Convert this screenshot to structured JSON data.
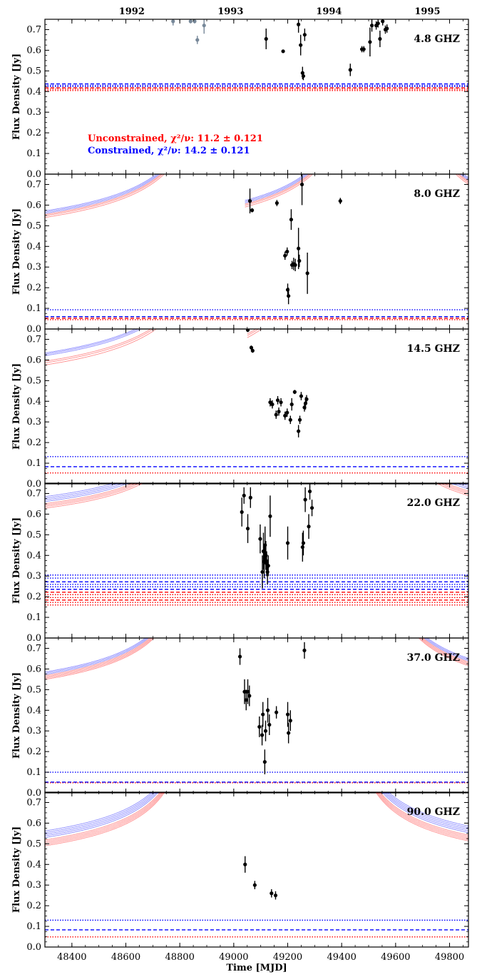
{
  "figure": {
    "top_axis_years": [
      "1992",
      "1993",
      "1994",
      "1995"
    ],
    "xlabel": "Time [MJD]",
    "ylabel": "Flux Density [Jy]",
    "legend": {
      "unconstrained": "Unconstrained, χ²/ν: 11.2 ± 0.121",
      "constrained": "Constrained, χ²/ν: 14.2 ± 0.121"
    },
    "colors": {
      "unconstrained": "#ff0000",
      "constrained": "#0000ff",
      "points": "#000000",
      "points_early": "#778899"
    }
  },
  "chart_data": [
    {
      "type": "scatter",
      "label": "4.8 GHZ",
      "xlim": [
        48300,
        49870
      ],
      "ylim": [
        0,
        0.75
      ],
      "yticks": [
        0.0,
        0.1,
        0.2,
        0.3,
        0.4,
        0.5,
        0.6,
        0.7
      ],
      "xticks": [
        48400,
        48600,
        48800,
        49000,
        49200,
        49400,
        49600,
        49800
      ],
      "top_year_ticks_mjd": [
        48622,
        48988,
        49353,
        49718
      ],
      "legend_placement": "lower-left",
      "observations": [
        {
          "x": 48775,
          "y": 0.74,
          "err": 0.02,
          "color": "gray"
        },
        {
          "x": 48840,
          "y": 0.74,
          "err": 0.01,
          "color": "gray"
        },
        {
          "x": 48855,
          "y": 0.74,
          "err": 0.01,
          "color": "gray"
        },
        {
          "x": 48865,
          "y": 0.65,
          "err": 0.02,
          "color": "gray"
        },
        {
          "x": 48890,
          "y": 0.72,
          "err": 0.04,
          "color": "gray"
        },
        {
          "x": 49120,
          "y": 0.655,
          "err": 0.05
        },
        {
          "x": 49183,
          "y": 0.595,
          "err": 0.005
        },
        {
          "x": 49240,
          "y": 0.725,
          "err": 0.04
        },
        {
          "x": 49248,
          "y": 0.625,
          "err": 0.05
        },
        {
          "x": 49255,
          "y": 0.49,
          "err": 0.03
        },
        {
          "x": 49258,
          "y": 0.475,
          "err": 0.02
        },
        {
          "x": 49263,
          "y": 0.675,
          "err": 0.03
        },
        {
          "x": 49432,
          "y": 0.505,
          "err": 0.03
        },
        {
          "x": 49475,
          "y": 0.605,
          "err": 0.015
        },
        {
          "x": 49482,
          "y": 0.605,
          "err": 0.015
        },
        {
          "x": 49505,
          "y": 0.64,
          "err": 0.07
        },
        {
          "x": 49512,
          "y": 0.72,
          "err": 0.03
        },
        {
          "x": 49528,
          "y": 0.72,
          "err": 0.02
        },
        {
          "x": 49535,
          "y": 0.73,
          "err": 0.02
        },
        {
          "x": 49542,
          "y": 0.655,
          "err": 0.04
        },
        {
          "x": 49552,
          "y": 0.74,
          "err": 0.02
        },
        {
          "x": 49562,
          "y": 0.7,
          "err": 0.02
        },
        {
          "x": 49568,
          "y": 0.705,
          "err": 0.02
        }
      ],
      "model": {
        "events": [
          [
            49090,
            49400
          ]
        ],
        "base": 0.5,
        "floor": 0.525,
        "amp": 1.1,
        "gamma": 0.55,
        "width": 55,
        "recover": 1000,
        "offsets_unconstrained": [
          -0.005,
          0.0,
          0.004
        ],
        "offsets_constrained": [
          0.0,
          0.006,
          0.01
        ]
      },
      "baselines": {
        "unconstrained": [
          {
            "y": 0.405,
            "style": "dotted"
          },
          {
            "y": 0.412,
            "style": "dotted"
          },
          {
            "y": 0.418,
            "style": "dashed"
          }
        ],
        "constrained": [
          {
            "y": 0.424,
            "style": "dotted"
          },
          {
            "y": 0.43,
            "style": "dotted"
          },
          {
            "y": 0.437,
            "style": "dashed"
          }
        ]
      }
    },
    {
      "type": "scatter",
      "label": "8.0 GHZ",
      "xlim": [
        48300,
        49870
      ],
      "ylim": [
        0,
        0.75
      ],
      "yticks": [
        0.0,
        0.1,
        0.2,
        0.3,
        0.4,
        0.5,
        0.6,
        0.7
      ],
      "xticks": [
        48400,
        48600,
        48800,
        49000,
        49200,
        49400,
        49600,
        49800
      ],
      "observations": [
        {
          "x": 49060,
          "y": 0.62,
          "err": 0.06
        },
        {
          "x": 49068,
          "y": 0.575,
          "err": 0.01
        },
        {
          "x": 49160,
          "y": 0.61,
          "err": 0.015
        },
        {
          "x": 49190,
          "y": 0.355,
          "err": 0.02
        },
        {
          "x": 49198,
          "y": 0.375,
          "err": 0.02
        },
        {
          "x": 49200,
          "y": 0.19,
          "err": 0.03
        },
        {
          "x": 49203,
          "y": 0.16,
          "err": 0.04
        },
        {
          "x": 49213,
          "y": 0.53,
          "err": 0.05
        },
        {
          "x": 49216,
          "y": 0.31,
          "err": 0.02
        },
        {
          "x": 49222,
          "y": 0.315,
          "err": 0.03
        },
        {
          "x": 49228,
          "y": 0.31,
          "err": 0.03
        },
        {
          "x": 49240,
          "y": 0.39,
          "err": 0.1
        },
        {
          "x": 49243,
          "y": 0.33,
          "err": 0.03
        },
        {
          "x": 49253,
          "y": 0.7,
          "err": 0.1
        },
        {
          "x": 49273,
          "y": 0.27,
          "err": 0.1
        },
        {
          "x": 49395,
          "y": 0.62,
          "err": 0.015
        }
      ],
      "model": {
        "events": [
          [
            48850,
            49040
          ],
          [
            49400,
            49715
          ]
        ],
        "base": 0.27,
        "floor": 0.0,
        "amp": 0.55,
        "gamma": 0.45,
        "width": 70,
        "recover": 0,
        "offsets_unconstrained": [
          -0.008,
          0.0,
          0.006
        ],
        "offsets_constrained": [
          0.012,
          0.018,
          0.024
        ]
      },
      "baselines": {
        "unconstrained": [
          {
            "y": 0.045,
            "style": "dotted"
          },
          {
            "y": 0.052,
            "style": "dashed"
          }
        ],
        "constrained": [
          {
            "y": 0.06,
            "style": "dashed"
          },
          {
            "y": 0.093,
            "style": "dotted"
          }
        ]
      }
    },
    {
      "type": "scatter",
      "label": "14.5 GHZ",
      "xlim": [
        48300,
        49870
      ],
      "ylim": [
        0,
        0.75
      ],
      "yticks": [
        0.0,
        0.1,
        0.2,
        0.3,
        0.4,
        0.5,
        0.6,
        0.7
      ],
      "xticks": [
        48400,
        48600,
        48800,
        49000,
        49200,
        49400,
        49600,
        49800
      ],
      "observations": [
        {
          "x": 49052,
          "y": 0.745,
          "err": 0.01
        },
        {
          "x": 49065,
          "y": 0.66,
          "err": 0.01
        },
        {
          "x": 49070,
          "y": 0.645,
          "err": 0.01
        },
        {
          "x": 49135,
          "y": 0.395,
          "err": 0.02
        },
        {
          "x": 49143,
          "y": 0.385,
          "err": 0.02
        },
        {
          "x": 49157,
          "y": 0.335,
          "err": 0.02
        },
        {
          "x": 49163,
          "y": 0.405,
          "err": 0.02
        },
        {
          "x": 49167,
          "y": 0.35,
          "err": 0.02
        },
        {
          "x": 49175,
          "y": 0.395,
          "err": 0.02
        },
        {
          "x": 49190,
          "y": 0.33,
          "err": 0.02
        },
        {
          "x": 49198,
          "y": 0.345,
          "err": 0.02
        },
        {
          "x": 49210,
          "y": 0.31,
          "err": 0.02
        },
        {
          "x": 49215,
          "y": 0.385,
          "err": 0.03
        },
        {
          "x": 49226,
          "y": 0.445,
          "err": 0.01
        },
        {
          "x": 49240,
          "y": 0.255,
          "err": 0.03
        },
        {
          "x": 49245,
          "y": 0.31,
          "err": 0.02
        },
        {
          "x": 49250,
          "y": 0.425,
          "err": 0.02
        },
        {
          "x": 49262,
          "y": 0.37,
          "err": 0.02
        },
        {
          "x": 49266,
          "y": 0.39,
          "err": 0.03
        },
        {
          "x": 49270,
          "y": 0.41,
          "err": 0.02
        }
      ],
      "model": {
        "events": [
          [
            48880,
            49050
          ],
          [
            49270,
            49980
          ]
        ],
        "base": 0.32,
        "floor": 0.0,
        "amp": 0.6,
        "gamma": 0.5,
        "width": 70,
        "recover": 0,
        "offsets_unconstrained": [
          -0.01,
          0.0,
          0.008
        ],
        "offsets_constrained": [
          0.035,
          0.042,
          0.048
        ]
      },
      "baselines": {
        "unconstrained": [
          {
            "y": 0.053,
            "style": "dotted"
          }
        ],
        "constrained": [
          {
            "y": 0.083,
            "style": "dashed"
          },
          {
            "y": 0.132,
            "style": "dotted"
          }
        ]
      }
    },
    {
      "type": "scatter",
      "label": "22.0 GHZ",
      "xlim": [
        48300,
        49870
      ],
      "ylim": [
        0,
        0.75
      ],
      "yticks": [
        0.0,
        0.1,
        0.2,
        0.3,
        0.4,
        0.5,
        0.6,
        0.7
      ],
      "xticks": [
        48400,
        48600,
        48800,
        49000,
        49200,
        49400,
        49600,
        49800
      ],
      "observations": [
        {
          "x": 49030,
          "y": 0.61,
          "err": 0.07
        },
        {
          "x": 49038,
          "y": 0.69,
          "err": 0.04
        },
        {
          "x": 49052,
          "y": 0.53,
          "err": 0.07
        },
        {
          "x": 49062,
          "y": 0.68,
          "err": 0.05
        },
        {
          "x": 49098,
          "y": 0.48,
          "err": 0.07
        },
        {
          "x": 49106,
          "y": 0.32,
          "err": 0.08
        },
        {
          "x": 49110,
          "y": 0.42,
          "err": 0.09
        },
        {
          "x": 49113,
          "y": 0.37,
          "err": 0.08
        },
        {
          "x": 49116,
          "y": 0.45,
          "err": 0.09
        },
        {
          "x": 49119,
          "y": 0.4,
          "err": 0.07
        },
        {
          "x": 49122,
          "y": 0.36,
          "err": 0.06
        },
        {
          "x": 49125,
          "y": 0.32,
          "err": 0.06
        },
        {
          "x": 49128,
          "y": 0.35,
          "err": 0.05
        },
        {
          "x": 49135,
          "y": 0.59,
          "err": 0.1
        },
        {
          "x": 49200,
          "y": 0.46,
          "err": 0.08
        },
        {
          "x": 49255,
          "y": 0.44,
          "err": 0.07
        },
        {
          "x": 49258,
          "y": 0.46,
          "err": 0.06
        },
        {
          "x": 49265,
          "y": 0.67,
          "err": 0.06
        },
        {
          "x": 49278,
          "y": 0.54,
          "err": 0.06
        },
        {
          "x": 49282,
          "y": 0.71,
          "err": 0.04
        },
        {
          "x": 49290,
          "y": 0.63,
          "err": 0.04
        }
      ],
      "model": {
        "events": [
          [
            48820,
            49085
          ],
          [
            49290,
            49595
          ]
        ],
        "base": 0.43,
        "floor": 0.55,
        "amp": 0.45,
        "gamma": 0.45,
        "width": 60,
        "recover": 900,
        "offsets_unconstrained": [
          -0.02,
          -0.012,
          -0.005,
          0.002
        ],
        "offsets_constrained": [
          0.012,
          0.02,
          0.028,
          0.036
        ]
      },
      "baselines": {
        "unconstrained": [
          {
            "y": 0.16,
            "style": "dotted"
          },
          {
            "y": 0.172,
            "style": "dotted"
          },
          {
            "y": 0.184,
            "style": "dashed"
          },
          {
            "y": 0.196,
            "style": "dotted"
          },
          {
            "y": 0.21,
            "style": "dotted"
          },
          {
            "y": 0.222,
            "style": "dashed"
          }
        ],
        "constrained": [
          {
            "y": 0.236,
            "style": "dashed"
          },
          {
            "y": 0.248,
            "style": "dotted"
          },
          {
            "y": 0.26,
            "style": "dotted"
          },
          {
            "y": 0.272,
            "style": "dashed"
          },
          {
            "y": 0.29,
            "style": "dotted"
          },
          {
            "y": 0.305,
            "style": "dotted"
          }
        ]
      }
    },
    {
      "type": "scatter",
      "label": "37.0 GHZ",
      "xlim": [
        48300,
        49870
      ],
      "ylim": [
        0,
        0.75
      ],
      "yticks": [
        0.0,
        0.1,
        0.2,
        0.3,
        0.4,
        0.5,
        0.6,
        0.7
      ],
      "xticks": [
        48400,
        48600,
        48800,
        49000,
        49200,
        49400,
        49600,
        49800
      ],
      "observations": [
        {
          "x": 49023,
          "y": 0.66,
          "err": 0.04
        },
        {
          "x": 49040,
          "y": 0.49,
          "err": 0.06
        },
        {
          "x": 49046,
          "y": 0.45,
          "err": 0.05
        },
        {
          "x": 49052,
          "y": 0.49,
          "err": 0.06
        },
        {
          "x": 49058,
          "y": 0.47,
          "err": 0.05
        },
        {
          "x": 49095,
          "y": 0.32,
          "err": 0.05
        },
        {
          "x": 49105,
          "y": 0.28,
          "err": 0.05
        },
        {
          "x": 49108,
          "y": 0.38,
          "err": 0.06
        },
        {
          "x": 49115,
          "y": 0.15,
          "err": 0.06
        },
        {
          "x": 49118,
          "y": 0.3,
          "err": 0.05
        },
        {
          "x": 49126,
          "y": 0.4,
          "err": 0.06
        },
        {
          "x": 49132,
          "y": 0.33,
          "err": 0.05
        },
        {
          "x": 49158,
          "y": 0.39,
          "err": 0.03
        },
        {
          "x": 49200,
          "y": 0.38,
          "err": 0.06
        },
        {
          "x": 49203,
          "y": 0.29,
          "err": 0.05
        },
        {
          "x": 49210,
          "y": 0.35,
          "err": 0.05
        },
        {
          "x": 49262,
          "y": 0.69,
          "err": 0.04
        }
      ],
      "model": {
        "events": [
          [
            48810,
            49000
          ],
          [
            49280,
            49580
          ]
        ],
        "base": 0.29,
        "floor": 0.43,
        "amp": 0.55,
        "gamma": 0.45,
        "width": 60,
        "recover": 800,
        "offsets_unconstrained": [
          -0.01,
          -0.004,
          0.002,
          0.008
        ],
        "offsets_constrained": [
          0.014,
          0.02,
          0.026
        ]
      },
      "baselines": {
        "unconstrained": [
          {
            "y": 0.049,
            "style": "dotted"
          }
        ],
        "constrained": [
          {
            "y": 0.052,
            "style": "dashed"
          },
          {
            "y": 0.1,
            "style": "dotted"
          }
        ]
      }
    },
    {
      "type": "scatter",
      "label": "90.0 GHZ",
      "xlim": [
        48300,
        49870
      ],
      "ylim": [
        0,
        0.75
      ],
      "yticks": [
        0.0,
        0.1,
        0.2,
        0.3,
        0.4,
        0.5,
        0.6,
        0.7
      ],
      "xticks": [
        48400,
        48600,
        48800,
        49000,
        49200,
        49400,
        49600,
        49800
      ],
      "observations": [
        {
          "x": 49042,
          "y": 0.4,
          "err": 0.04
        },
        {
          "x": 49078,
          "y": 0.3,
          "err": 0.02
        },
        {
          "x": 49140,
          "y": 0.26,
          "err": 0.02
        },
        {
          "x": 49155,
          "y": 0.25,
          "err": 0.02
        }
      ],
      "model": {
        "events": [
          [
            48810,
            49000
          ],
          [
            49200,
            49460
          ]
        ],
        "base": 0.24,
        "floor": 0.39,
        "amp": 0.55,
        "gamma": 0.45,
        "width": 55,
        "recover": 700,
        "offsets_unconstrained": [
          -0.01,
          -0.003,
          0.004,
          0.011,
          0.018
        ],
        "offsets_constrained": [
          0.03,
          0.038,
          0.046,
          0.054,
          0.062
        ]
      },
      "baselines": {
        "unconstrained": [
          {
            "y": 0.049,
            "style": "dotted"
          }
        ],
        "constrained": [
          {
            "y": 0.083,
            "style": "dashed"
          },
          {
            "y": 0.13,
            "style": "dotted"
          }
        ]
      }
    }
  ]
}
